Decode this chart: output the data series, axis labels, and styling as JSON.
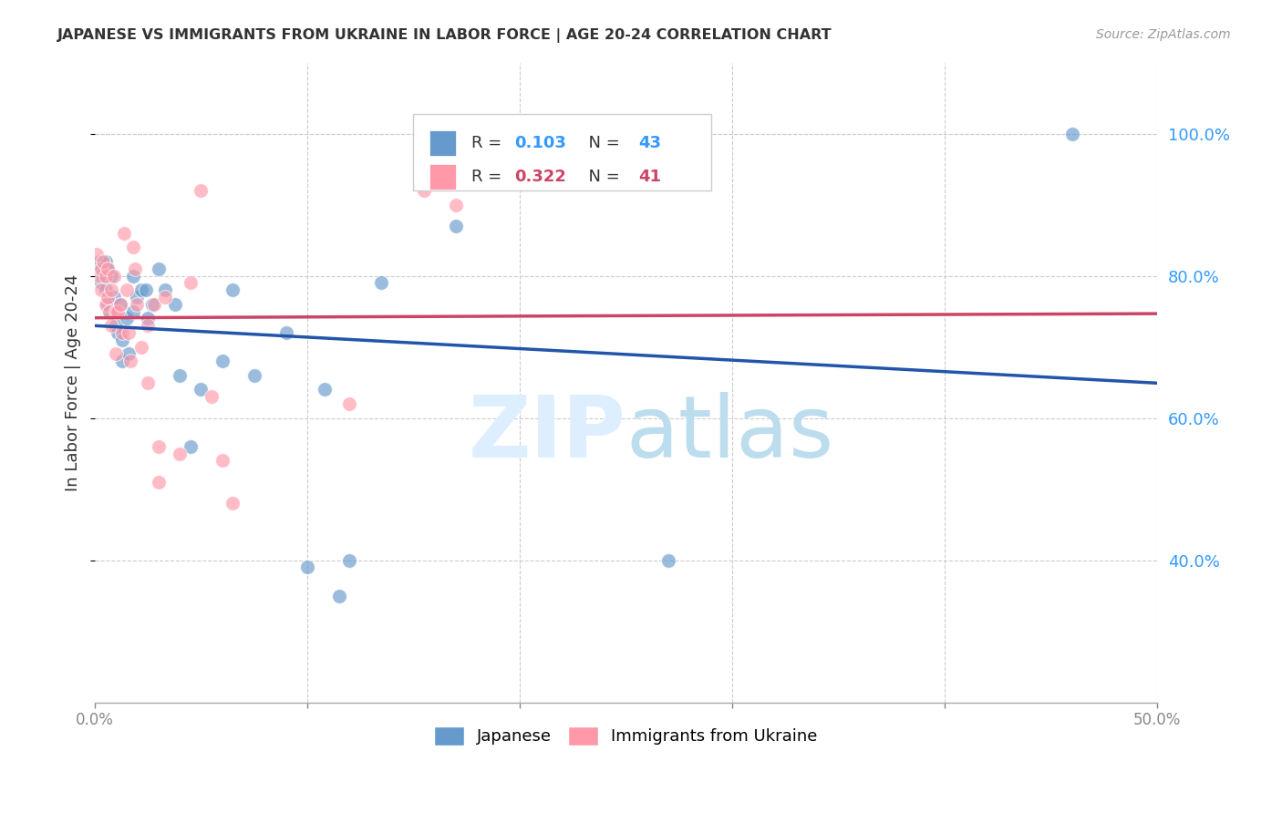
{
  "title": "JAPANESE VS IMMIGRANTS FROM UKRAINE IN LABOR FORCE | AGE 20-24 CORRELATION CHART",
  "source": "Source: ZipAtlas.com",
  "ylabel": "In Labor Force | Age 20-24",
  "xlim": [
    0.0,
    0.5
  ],
  "ylim": [
    0.2,
    1.1
  ],
  "ytick_labels": [
    "40.0%",
    "60.0%",
    "80.0%",
    "100.0%"
  ],
  "ytick_values": [
    0.4,
    0.6,
    0.8,
    1.0
  ],
  "xtick_labels": [
    "0.0%",
    "",
    "",
    "",
    "",
    "50.0%"
  ],
  "xtick_values": [
    0.0,
    0.1,
    0.2,
    0.3,
    0.4,
    0.5
  ],
  "legend_japanese": "Japanese",
  "legend_ukraine": "Immigrants from Ukraine",
  "R_japanese": 0.103,
  "N_japanese": 43,
  "R_ukraine": 0.322,
  "N_ukraine": 41,
  "blue_color": "#6699CC",
  "pink_color": "#FF99AA",
  "blue_line_color": "#2255AA",
  "pink_line_color": "#CC4466",
  "japanese_x": [
    0.002,
    0.003,
    0.003,
    0.004,
    0.005,
    0.005,
    0.006,
    0.006,
    0.007,
    0.008,
    0.009,
    0.01,
    0.011,
    0.012,
    0.013,
    0.013,
    0.015,
    0.016,
    0.018,
    0.018,
    0.02,
    0.022,
    0.024,
    0.025,
    0.027,
    0.03,
    0.033,
    0.038,
    0.04,
    0.045,
    0.05,
    0.06,
    0.065,
    0.075,
    0.09,
    0.1,
    0.108,
    0.115,
    0.12,
    0.135,
    0.17,
    0.27,
    0.46
  ],
  "japanese_y": [
    0.82,
    0.79,
    0.81,
    0.8,
    0.78,
    0.82,
    0.76,
    0.81,
    0.75,
    0.8,
    0.77,
    0.73,
    0.72,
    0.76,
    0.71,
    0.68,
    0.74,
    0.69,
    0.75,
    0.8,
    0.77,
    0.78,
    0.78,
    0.74,
    0.76,
    0.81,
    0.78,
    0.76,
    0.66,
    0.56,
    0.64,
    0.68,
    0.78,
    0.66,
    0.72,
    0.39,
    0.64,
    0.35,
    0.4,
    0.79,
    0.87,
    0.4,
    1.0
  ],
  "ukraine_x": [
    0.001,
    0.002,
    0.003,
    0.003,
    0.004,
    0.005,
    0.005,
    0.006,
    0.006,
    0.007,
    0.008,
    0.008,
    0.009,
    0.01,
    0.01,
    0.011,
    0.012,
    0.013,
    0.014,
    0.015,
    0.016,
    0.017,
    0.018,
    0.019,
    0.02,
    0.022,
    0.025,
    0.025,
    0.028,
    0.03,
    0.03,
    0.033,
    0.04,
    0.045,
    0.05,
    0.055,
    0.06,
    0.065,
    0.12,
    0.155,
    0.17
  ],
  "ukraine_y": [
    0.83,
    0.8,
    0.81,
    0.78,
    0.82,
    0.76,
    0.8,
    0.77,
    0.81,
    0.75,
    0.78,
    0.73,
    0.8,
    0.75,
    0.69,
    0.75,
    0.76,
    0.72,
    0.86,
    0.78,
    0.72,
    0.68,
    0.84,
    0.81,
    0.76,
    0.7,
    0.73,
    0.65,
    0.76,
    0.56,
    0.51,
    0.77,
    0.55,
    0.79,
    0.92,
    0.63,
    0.54,
    0.48,
    0.62,
    0.92,
    0.9
  ],
  "watermark_zip_color": "#DDEEFF",
  "watermark_atlas_color": "#BBDDEE"
}
